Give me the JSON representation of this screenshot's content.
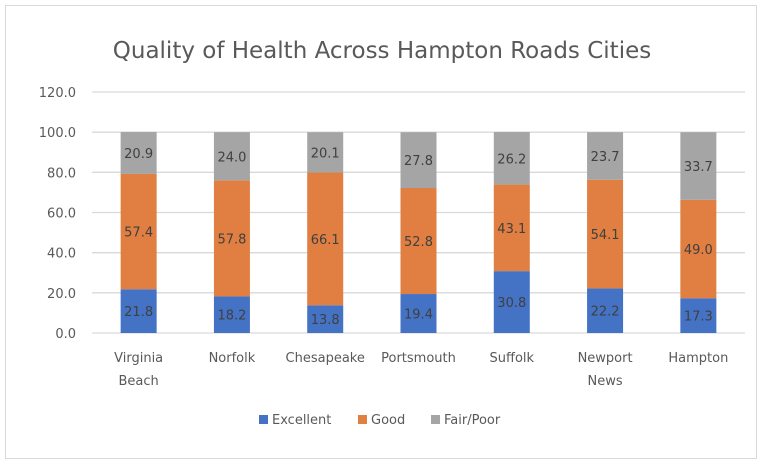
{
  "chart_data": {
    "type": "bar",
    "stacked": true,
    "title": "Quality of Health Across Hampton Roads Cities",
    "xlabel": "",
    "ylabel": "",
    "ylim": [
      0,
      120
    ],
    "yticks": [
      "0.0",
      "20.0",
      "40.0",
      "60.0",
      "80.0",
      "100.0",
      "120.0"
    ],
    "grid": true,
    "legend_position": "bottom",
    "categories": [
      [
        "Virginia",
        "Beach"
      ],
      [
        "Norfolk"
      ],
      [
        "Chesapeake"
      ],
      [
        "Portsmouth"
      ],
      [
        "Suffolk"
      ],
      [
        "Newport",
        "News"
      ],
      [
        "Hampton"
      ]
    ],
    "series": [
      {
        "name": "Excellent",
        "color": "#4472c4",
        "values": [
          21.8,
          18.2,
          13.8,
          19.4,
          30.8,
          22.2,
          17.3
        ]
      },
      {
        "name": "Good",
        "color": "#e07f41",
        "values": [
          57.4,
          57.8,
          66.1,
          52.8,
          43.1,
          54.1,
          49.0
        ]
      },
      {
        "name": "Fair/Poor",
        "color": "#a5a5a5",
        "values": [
          20.9,
          24.0,
          20.1,
          27.8,
          26.2,
          23.7,
          33.7
        ]
      }
    ]
  }
}
